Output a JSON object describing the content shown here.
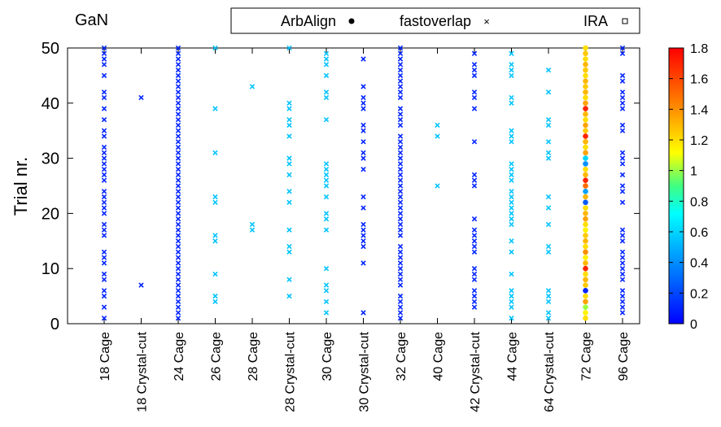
{
  "chart_data": {
    "type": "scatter",
    "title": "GaN",
    "xlabel": "",
    "ylabel": "Trial nr.",
    "ylim": [
      0,
      50
    ],
    "yticks": [
      0,
      10,
      20,
      30,
      40,
      50
    ],
    "categories": [
      "18 Cage",
      "18 Crystal-cut",
      "24 Cage",
      "26 Cage",
      "28 Cage",
      "28 Crystal-cut",
      "30 Cage",
      "30 Crystal-cut",
      "32 Cage",
      "40 Cage",
      "42 Crystal-cut",
      "44 Cage",
      "64 Crystal-cut",
      "72 Cage",
      "96 Cage"
    ],
    "legend": {
      "placement": "top",
      "entries": [
        "ArbAlign",
        "fastoverlap",
        "IRA"
      ]
    },
    "colorbar": {
      "min": 0,
      "max": 1.8,
      "ticks": [
        "1.8",
        "1.6",
        "1.4",
        "1.2",
        "1",
        "0.8",
        "0.6",
        "0.4",
        "0.2",
        "0"
      ]
    },
    "grid": false,
    "series": [
      {
        "name": "fastoverlap",
        "marker": "x",
        "color_scale": "value",
        "points": [
          {
            "category": "18 Cage",
            "trials": [
              1,
              3,
              5,
              6,
              8,
              9,
              11,
              12,
              13,
              16,
              17,
              18,
              20,
              21,
              22,
              23,
              24,
              26,
              27,
              28,
              29,
              30,
              31,
              32,
              34,
              35,
              37,
              39,
              41,
              42,
              45,
              47,
              48,
              49,
              50
            ],
            "value": 0.1
          },
          {
            "category": "18 Crystal-cut",
            "trials": [
              7,
              41
            ],
            "value": 0.1
          },
          {
            "category": "24 Cage",
            "trials": [
              1,
              2,
              3,
              4,
              5,
              6,
              7,
              8,
              9,
              10,
              11,
              12,
              13,
              14,
              15,
              16,
              17,
              18,
              19,
              20,
              21,
              22,
              23,
              24,
              25,
              26,
              27,
              28,
              29,
              30,
              31,
              32,
              33,
              34,
              35,
              36,
              37,
              38,
              39,
              40,
              41,
              42,
              43,
              44,
              45,
              46,
              47,
              48,
              49,
              50
            ],
            "value": 0.1
          },
          {
            "category": "26 Cage",
            "trials": [
              4,
              5,
              9,
              15,
              16,
              22,
              23,
              31,
              39,
              50
            ],
            "value": 0.55
          },
          {
            "category": "28 Cage",
            "trials": [
              17,
              18,
              43
            ],
            "value": 0.55
          },
          {
            "category": "28 Crystal-cut",
            "trials": [
              5,
              8,
              13,
              14,
              17,
              22,
              24,
              27,
              29,
              30,
              34,
              36,
              37,
              39,
              40,
              50
            ],
            "value": 0.55
          },
          {
            "category": "30 Cage",
            "trials": [
              2,
              4,
              6,
              7,
              10,
              17,
              19,
              20,
              23,
              25,
              26,
              27,
              28,
              29,
              37,
              41,
              42,
              45,
              47,
              48,
              49
            ],
            "value": 0.55
          },
          {
            "category": "30 Crystal-cut",
            "trials": [
              2,
              11,
              14,
              15,
              16,
              17,
              18,
              21,
              23,
              28,
              30,
              31,
              33,
              35,
              36,
              39,
              40,
              41,
              43,
              48
            ],
            "value": 0.1
          },
          {
            "category": "32 Cage",
            "trials": [
              1,
              2,
              3,
              4,
              5,
              7,
              8,
              9,
              10,
              11,
              12,
              13,
              14,
              16,
              17,
              18,
              19,
              20,
              21,
              22,
              23,
              24,
              25,
              26,
              27,
              28,
              29,
              30,
              31,
              32,
              33,
              34,
              36,
              37,
              38,
              39,
              41,
              42,
              43,
              44,
              45,
              46,
              47,
              48,
              49,
              50
            ],
            "value": 0.1
          },
          {
            "category": "40 Cage",
            "trials": [
              25,
              34,
              36
            ],
            "value": 0.55
          },
          {
            "category": "42 Crystal-cut",
            "trials": [
              3,
              4,
              5,
              6,
              8,
              9,
              10,
              13,
              14,
              15,
              16,
              17,
              19,
              25,
              26,
              27,
              33,
              39,
              41,
              42,
              45,
              46,
              47,
              49
            ],
            "value": 0.1
          },
          {
            "category": "44 Cage",
            "trials": [
              1,
              3,
              4,
              5,
              6,
              9,
              13,
              15,
              18,
              19,
              20,
              21,
              22,
              23,
              24,
              26,
              27,
              28,
              29,
              33,
              34,
              35,
              40,
              41,
              45,
              46,
              47,
              49
            ],
            "value": 0.55
          },
          {
            "category": "64 Crystal-cut",
            "trials": [
              1,
              2,
              4,
              5,
              6,
              13,
              14,
              18,
              21,
              23,
              30,
              31,
              33,
              36,
              37,
              42,
              46
            ],
            "value": 0.55
          },
          {
            "category": "96 Cage",
            "trials": [
              2,
              3,
              4,
              5,
              6,
              8,
              9,
              10,
              11,
              12,
              13,
              15,
              16,
              17,
              22,
              24,
              25,
              27,
              29,
              30,
              31,
              35,
              36,
              39,
              40,
              41,
              42,
              44,
              45,
              49,
              50
            ],
            "value": 0.1
          }
        ]
      },
      {
        "name": "ArbAlign",
        "marker": "dot",
        "color_scale": "value",
        "points": [
          {
            "category": "72 Cage",
            "trials": [
              1,
              2,
              3,
              4,
              5,
              6,
              7,
              8,
              9,
              10,
              11,
              12,
              13,
              14,
              15,
              16,
              17,
              18,
              19,
              20,
              21,
              22,
              23,
              24,
              25,
              26,
              27,
              28,
              29,
              30,
              31,
              32,
              33,
              34,
              35,
              36,
              37,
              38,
              39,
              40,
              41,
              42,
              43,
              44,
              45,
              46,
              47,
              48,
              49,
              50
            ],
            "values": [
              1.2,
              1.15,
              1.0,
              1.35,
              1.2,
              0.1,
              1.25,
              1.3,
              1.2,
              1.7,
              1.3,
              1.15,
              1.4,
              1.2,
              1.3,
              1.25,
              1.15,
              1.2,
              1.35,
              1.3,
              1.2,
              0.25,
              1.3,
              0.45,
              1.5,
              1.7,
              1.3,
              1.2,
              0.4,
              0.6,
              1.35,
              1.2,
              1.3,
              1.7,
              1.25,
              1.35,
              1.2,
              1.3,
              1.7,
              1.35,
              1.2,
              1.3,
              1.25,
              1.3,
              1.2,
              1.25,
              1.3,
              1.2,
              1.25,
              1.2
            ]
          }
        ]
      }
    ]
  }
}
